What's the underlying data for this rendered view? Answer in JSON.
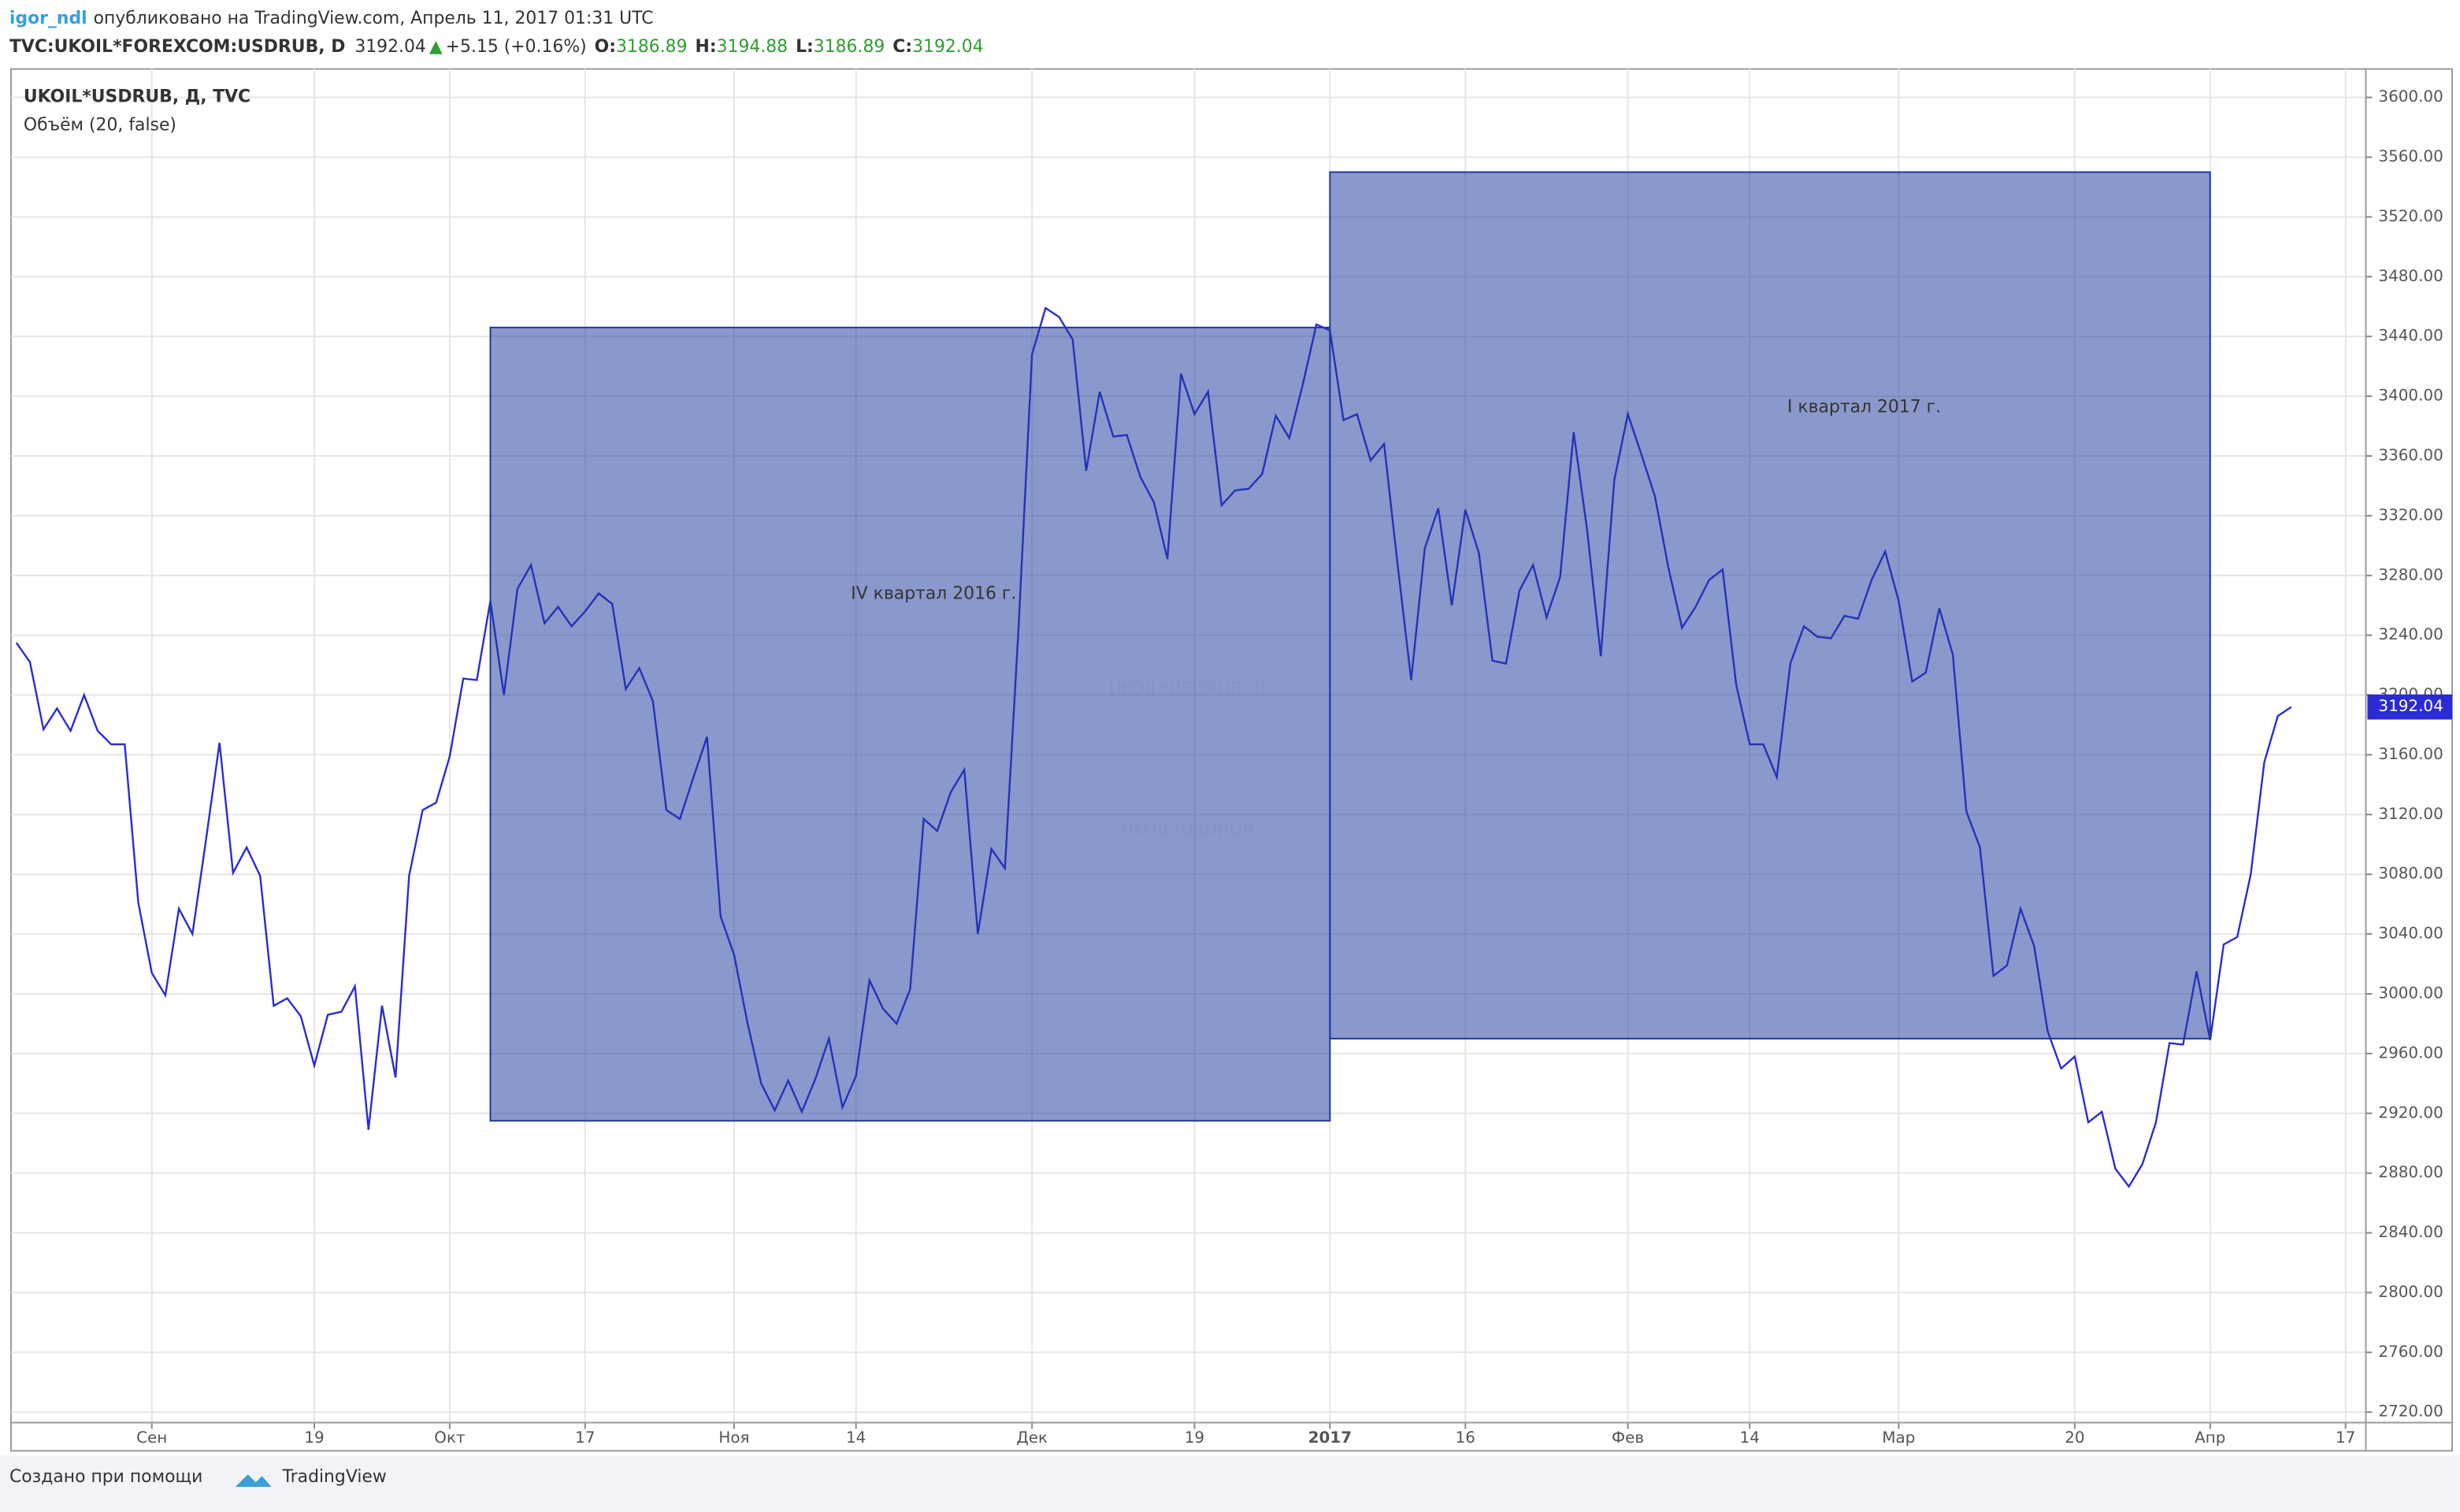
{
  "header": {
    "author": "igor_ndl",
    "published": "опубликовано на TradingView.com, Апрель 11, 2017 01:31 UTC",
    "symbol": "TVC:UKOIL*FOREXCOM:USDRUB, D",
    "last": "3192.04",
    "change": "+5.15 (+0.16%)",
    "o_label": "O:",
    "o": "3186.89",
    "h_label": "H:",
    "h": "3194.88",
    "l_label": "L:",
    "l": "3186.89",
    "c_label": "C:",
    "c": "3192.04"
  },
  "chart_data": {
    "type": "line",
    "legend_title": "UKOIL*USDRUB, Д, TVC",
    "legend_sub": "Объём (20, false)",
    "watermark": "UKOIL*USDRUB, Д",
    "watermark_sub": "UKOIL*USDRUB",
    "price_label": "3192.04",
    "color": "#2b2bd6",
    "grid": true,
    "values": [
      3235,
      3222,
      3177,
      3191,
      3176,
      3200,
      3176,
      3167,
      3167,
      3061,
      3014,
      2999,
      3057,
      3040,
      3103,
      3168,
      3081,
      3098,
      3079,
      2992,
      2997,
      2985,
      2952,
      2986,
      2988,
      3005,
      2909,
      2992,
      2944,
      3079,
      3123,
      3128,
      3159,
      3211,
      3210,
      3263,
      3200,
      3271,
      3287,
      3248,
      3259,
      3246,
      3256,
      3268,
      3261,
      3204,
      3218,
      3196,
      3123,
      3117,
      3145,
      3172,
      3052,
      3026,
      2980,
      2940,
      2922,
      2942,
      2921,
      2943,
      2970,
      2924,
      2945,
      3009,
      2990,
      2980,
      3003,
      3117,
      3109,
      3135,
      3150,
      3040,
      3097,
      3084,
      3244,
      3428,
      3459,
      3453,
      3438,
      3350,
      3403,
      3373,
      3374,
      3346,
      3329,
      3291,
      3415,
      3388,
      3403,
      3327,
      3337,
      3338,
      3348,
      3387,
      3372,
      3408,
      3448,
      3444,
      3384,
      3388,
      3357,
      3368,
      3287,
      3210,
      3298,
      3325,
      3260,
      3324,
      3295,
      3223,
      3221,
      3270,
      3287,
      3252,
      3279,
      3376,
      3310,
      3226,
      3344,
      3388,
      3361,
      3333,
      3285,
      3245,
      3259,
      3277,
      3284,
      3207,
      3167,
      3167,
      3145,
      3221,
      3246,
      3239,
      3238,
      3253,
      3251,
      3277,
      3296,
      3263,
      3209,
      3215,
      3258,
      3227,
      3122,
      3098,
      3012,
      3019,
      3057,
      3032,
      2975,
      2950,
      2958,
      2914,
      2921,
      2883,
      2871,
      2886,
      2914,
      2967,
      2966,
      3015,
      2969,
      3033,
      3038,
      3080,
      3155,
      3186,
      3192
    ],
    "xlim": [
      -0.4,
      173.5
    ],
    "xticks": [
      {
        "value": 10,
        "label": "Сен"
      },
      {
        "value": 22,
        "label": "19"
      },
      {
        "value": 32,
        "label": "Окт"
      },
      {
        "value": 42,
        "label": "17"
      },
      {
        "value": 53,
        "label": "Ноя"
      },
      {
        "value": 62,
        "label": "14"
      },
      {
        "value": 75,
        "label": "Дек"
      },
      {
        "value": 87,
        "label": "19"
      },
      {
        "value": 97,
        "label": "2017"
      },
      {
        "value": 107,
        "label": "16"
      },
      {
        "value": 119,
        "label": "Фев"
      },
      {
        "value": 128,
        "label": "14"
      },
      {
        "value": 139,
        "label": "Мар"
      },
      {
        "value": 152,
        "label": "20"
      },
      {
        "value": 162,
        "label": "Апр"
      },
      {
        "value": 172,
        "label": "17"
      }
    ],
    "ylim": [
      2713,
      3619
    ],
    "yticks": [
      {
        "value": 2720,
        "label": "2720.00"
      },
      {
        "value": 2760,
        "label": "2760.00"
      },
      {
        "value": 2800,
        "label": "2800.00"
      },
      {
        "value": 2840,
        "label": "2840.00"
      },
      {
        "value": 2880,
        "label": "2880.00"
      },
      {
        "value": 2920,
        "label": "2920.00"
      },
      {
        "value": 2960,
        "label": "2960.00"
      },
      {
        "value": 3000,
        "label": "3000.00"
      },
      {
        "value": 3040,
        "label": "3040.00"
      },
      {
        "value": 3080,
        "label": "3080.00"
      },
      {
        "value": 3120,
        "label": "3120.00"
      },
      {
        "value": 3160,
        "label": "3160.00"
      },
      {
        "value": 3200,
        "label": "3200.00"
      },
      {
        "value": 3240,
        "label": "3240.00"
      },
      {
        "value": 3280,
        "label": "3280.00"
      },
      {
        "value": 3320,
        "label": "3320.00"
      },
      {
        "value": 3360,
        "label": "3360.00"
      },
      {
        "value": 3400,
        "label": "3400.00"
      },
      {
        "value": 3440,
        "label": "3440.00"
      },
      {
        "value": 3480,
        "label": "3480.00"
      },
      {
        "value": 3520,
        "label": "3520.00"
      },
      {
        "value": 3560,
        "label": "3560.00"
      },
      {
        "value": 3600,
        "label": "3600.00"
      }
    ],
    "boxes": [
      {
        "label": "IV квартал 2016 г.",
        "x": [
          35,
          97
        ],
        "y": [
          2915,
          3446
        ],
        "color": "#1f3a9e"
      },
      {
        "label": "I квартал 2017 г.",
        "x": [
          97,
          162
        ],
        "y": [
          2970,
          3550
        ],
        "color": "#1f3a9e"
      }
    ]
  },
  "footer": {
    "made_with": "Создано при помощи",
    "brand": "TradingView"
  }
}
